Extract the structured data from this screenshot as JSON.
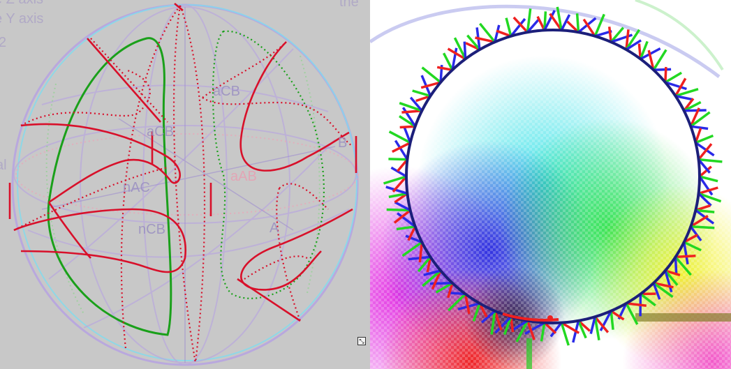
{
  "left_panel": {
    "fragments": {
      "z_axis": "e Z axis",
      "y_axis": "e Y axis",
      "num": "2",
      "side": "al",
      "top_right": "the"
    },
    "sphere_labels": {
      "aCB": "aCB",
      "aCB_left": "aCB",
      "nAC": "nAC",
      "aAB": "aAB",
      "nCB": "nCB",
      "A": "A",
      "B": "B"
    },
    "colors": {
      "sphere_outline": "#b8a6dc",
      "cyan": "#66d9ee",
      "red": "#d8102a",
      "green": "#1aa01a"
    }
  },
  "right_panel": {
    "colors": {
      "ring": "#1c1f7a",
      "tick_red": "#ef2020",
      "tick_green": "#22d822",
      "tick_blue": "#2a2ae8"
    }
  },
  "resize_icon": "resize-grip-icon"
}
